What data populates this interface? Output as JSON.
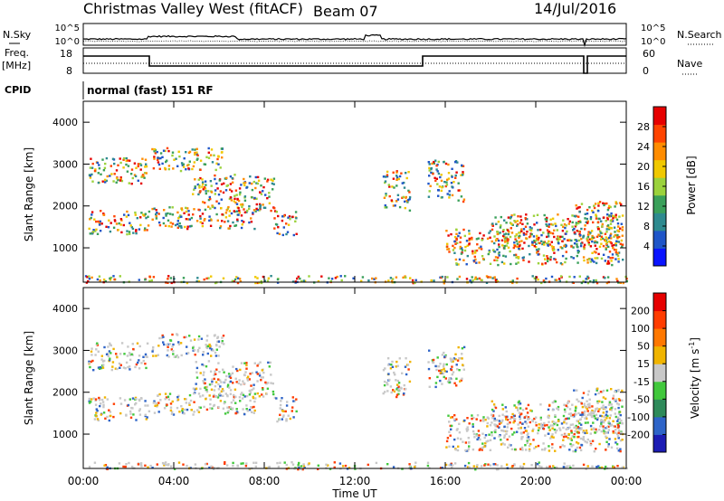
{
  "header": {
    "station": "Christmas Valley West (fitACF)",
    "beam": "Beam 07",
    "date": "14/Jul/2016"
  },
  "top_panels": {
    "nsky_label": "N.Sky",
    "nsky_ticks": [
      "10^5",
      "10^0"
    ],
    "nsearch_label": "N.Search",
    "nsearch_ticks": [
      "10^5",
      "10^0"
    ],
    "freq_label_1": "Freq.",
    "freq_label_2": "[MHz]",
    "freq_ticks": [
      "18",
      "8"
    ],
    "nave_label": "Nave",
    "nave_ticks": [
      "60",
      "0"
    ],
    "cpid_label": "CPID",
    "cpid_text": "normal (fast) 151 RF"
  },
  "chart_data": [
    {
      "type": "heatmap",
      "title": "",
      "ylabel": "Slant Range [km]",
      "ylim": [
        180,
        4500
      ],
      "yticks": [
        "4000",
        "3000",
        "2000",
        "1000"
      ],
      "colorbar_label": "Power [dB]",
      "colorbar_ticks": [
        "28",
        "24",
        "20",
        "16",
        "12",
        "8",
        "4"
      ],
      "colorbar_colors": [
        "#0a14ff",
        "#1f55c8",
        "#2e8a8f",
        "#3aa05a",
        "#9bd23c",
        "#f0c800",
        "#ff8c00",
        "#ff4400",
        "#e60000"
      ]
    },
    {
      "type": "heatmap",
      "title": "",
      "ylabel": "Velocity",
      "ylabel_main": "Slant Range [km]",
      "ylim": [
        180,
        4500
      ],
      "yticks": [
        "4000",
        "3000",
        "2000",
        "1000"
      ],
      "colorbar_label": "Velocity [m s^-1]",
      "colorbar_label_a": "Velocity [m s",
      "colorbar_label_sup": "-1",
      "colorbar_label_b": "]",
      "colorbar_ticks": [
        "200",
        "100",
        "50",
        "15",
        "-15",
        "-50",
        "-100",
        "-200"
      ],
      "colorbar_colors": [
        "#1c1cb4",
        "#2e64c8",
        "#2e8a5a",
        "#41c83c",
        "#c8c8c8",
        "#f0b400",
        "#ff7800",
        "#ff3c00",
        "#e60000"
      ]
    }
  ],
  "x_axis": {
    "ticks": [
      "00:00",
      "04:00",
      "08:00",
      "12:00",
      "16:00",
      "20:00",
      "00:00"
    ],
    "label": "Time UT"
  }
}
